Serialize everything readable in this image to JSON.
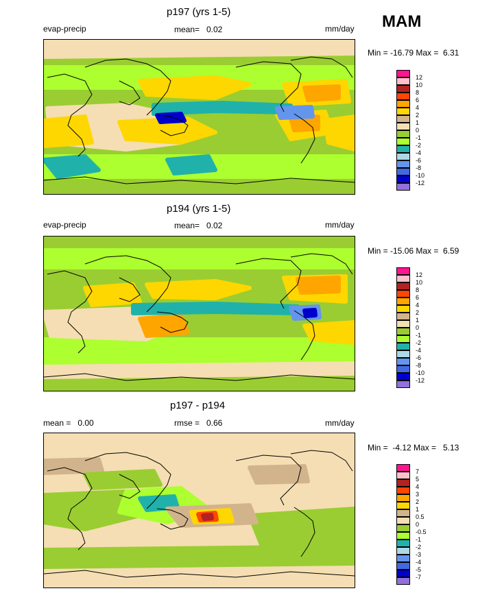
{
  "season": "MAM",
  "panels": [
    {
      "title": "p197 (yrs 1-5)",
      "left_label": "evap-precip",
      "stat_label": "mean=",
      "stat_value": "0.02",
      "units": "mm/day",
      "minmax_text": "Min = -16.79 Max =",
      "max_value": "6.31",
      "levels": [
        "12",
        "10",
        "8",
        "6",
        "4",
        "2",
        "1",
        "0",
        "-1",
        "-2",
        "-4",
        "-6",
        "-8",
        "-10",
        "-12"
      ],
      "colors": [
        "#ff1493",
        "#ffc0cb",
        "#b22222",
        "#ff4500",
        "#ffa500",
        "#ffd700",
        "#d2b48c",
        "#f5deb3",
        "#9acd32",
        "#adff2f",
        "#20b2aa",
        "#add8e6",
        "#6495ed",
        "#4169e1",
        "#0000cd",
        "#9370db"
      ],
      "ocean_color": "#9acd32"
    },
    {
      "title": "p194 (yrs 1-5)",
      "left_label": "evap-precip",
      "stat_label": "mean=",
      "stat_value": "0.02",
      "units": "mm/day",
      "minmax_text": "Min = -15.06 Max =",
      "max_value": "6.59",
      "levels": [
        "12",
        "10",
        "8",
        "6",
        "4",
        "2",
        "1",
        "0",
        "-1",
        "-2",
        "-4",
        "-6",
        "-8",
        "-10",
        "-12"
      ],
      "colors": [
        "#ff1493",
        "#ffc0cb",
        "#b22222",
        "#ff4500",
        "#ffa500",
        "#ffd700",
        "#d2b48c",
        "#f5deb3",
        "#9acd32",
        "#adff2f",
        "#20b2aa",
        "#add8e6",
        "#6495ed",
        "#4169e1",
        "#0000cd",
        "#9370db"
      ],
      "ocean_color": "#9acd32"
    },
    {
      "title": "p197 - p194",
      "left_label": "mean =   0.00",
      "stat_label": "rmse =",
      "stat_value": "0.66",
      "units": "mm/day",
      "minmax_text": "Min =  -4.12 Max =",
      "max_value": "5.13",
      "levels": [
        "7",
        "5",
        "4",
        "3",
        "2",
        "1",
        "0.5",
        "0",
        "-0.5",
        "-1",
        "-2",
        "-3",
        "-4",
        "-5",
        "-7"
      ],
      "colors": [
        "#ff1493",
        "#ffc0cb",
        "#b22222",
        "#ff4500",
        "#ffa500",
        "#ffd700",
        "#d2b48c",
        "#f5deb3",
        "#9acd32",
        "#adff2f",
        "#20b2aa",
        "#add8e6",
        "#6495ed",
        "#4169e1",
        "#0000cd",
        "#9370db"
      ],
      "ocean_color": "#f5deb3"
    }
  ],
  "chart_data": [
    {
      "type": "heatmap",
      "title": "p197 (yrs 1-5)",
      "variable": "evap-precip",
      "units": "mm/day",
      "mean": 0.02,
      "min": -16.79,
      "max": 6.31,
      "contour_levels": [
        12,
        10,
        8,
        6,
        4,
        2,
        1,
        0,
        -1,
        -2,
        -4,
        -6,
        -8,
        -10,
        -12
      ]
    },
    {
      "type": "heatmap",
      "title": "p194 (yrs 1-5)",
      "variable": "evap-precip",
      "units": "mm/day",
      "mean": 0.02,
      "min": -15.06,
      "max": 6.59,
      "contour_levels": [
        12,
        10,
        8,
        6,
        4,
        2,
        1,
        0,
        -1,
        -2,
        -4,
        -6,
        -8,
        -10,
        -12
      ]
    },
    {
      "type": "heatmap",
      "title": "p197 - p194",
      "units": "mm/day",
      "mean": 0.0,
      "rmse": 0.66,
      "min": -4.12,
      "max": 5.13,
      "contour_levels": [
        7,
        5,
        4,
        3,
        2,
        1,
        0.5,
        0,
        -0.5,
        -1,
        -2,
        -3,
        -4,
        -5,
        -7
      ]
    }
  ]
}
